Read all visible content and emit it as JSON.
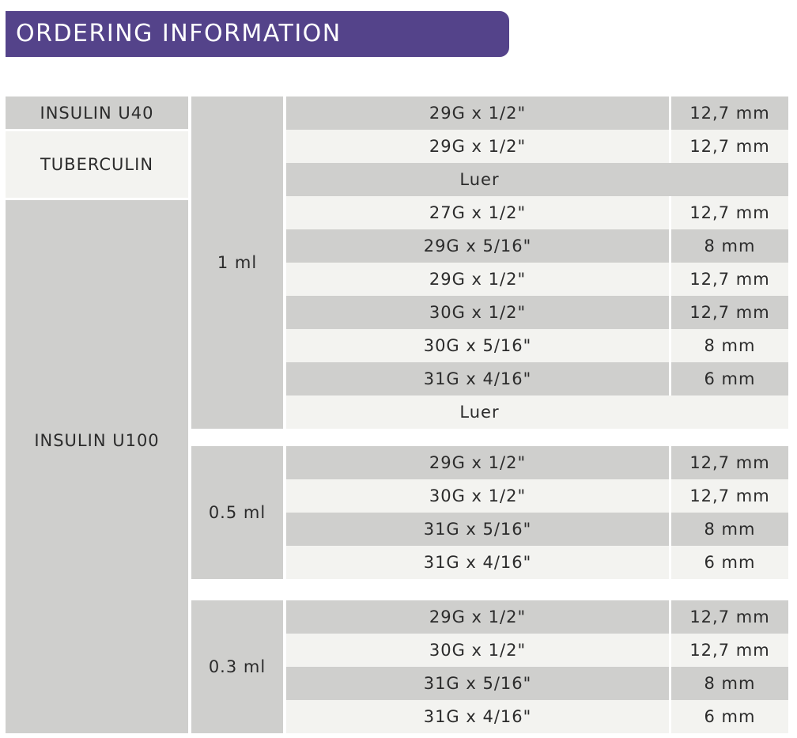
{
  "title": "ORDERING INFORMATION",
  "product_types": [
    "INSULIN U40",
    "TUBERCULIN",
    "INSULIN U100"
  ],
  "volumes": [
    "1 ml",
    "0.5 ml",
    "0.3 ml"
  ],
  "rows": [
    {
      "needle": "29G x 1/2\"",
      "length": "12,7 mm"
    },
    {
      "needle": "29G x 1/2\"",
      "length": "12,7 mm"
    },
    {
      "needle": "Luer",
      "length": ""
    },
    {
      "needle": "27G x 1/2\"",
      "length": "12,7 mm"
    },
    {
      "needle": "29G x 5/16\"",
      "length": "8 mm"
    },
    {
      "needle": "29G x 1/2\"",
      "length": "12,7 mm"
    },
    {
      "needle": "30G x 1/2\"",
      "length": "12,7 mm"
    },
    {
      "needle": "30G x 5/16\"",
      "length": "8 mm"
    },
    {
      "needle": "31G x 4/16\"",
      "length": "6 mm"
    },
    {
      "needle": "Luer",
      "length": ""
    },
    {
      "needle": "29G x 1/2\"",
      "length": "12,7 mm"
    },
    {
      "needle": "30G x 1/2\"",
      "length": "12,7 mm"
    },
    {
      "needle": "31G x 5/16\"",
      "length": "8 mm"
    },
    {
      "needle": "31G x 4/16\"",
      "length": "6 mm"
    },
    {
      "needle": "29G x 1/2\"",
      "length": "12,7 mm"
    },
    {
      "needle": "30G x 1/2\"",
      "length": "12,7 mm"
    },
    {
      "needle": "31G x 5/16\"",
      "length": "8 mm"
    },
    {
      "needle": "31G x 4/16\"",
      "length": "6 mm"
    }
  ]
}
